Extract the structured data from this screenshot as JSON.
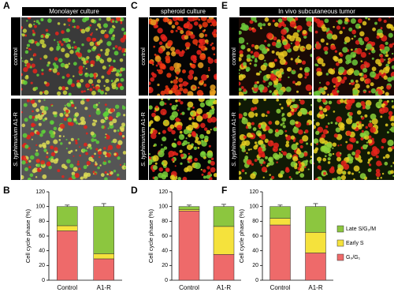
{
  "panels": [
    {
      "letter": "A",
      "title": "Monolayer culture",
      "rows": [
        {
          "label": "control"
        },
        {
          "species": "S. typhimurium",
          "strain": "A1-R"
        }
      ]
    },
    {
      "letter": "C",
      "title": "spheroid culture",
      "rows": [
        {
          "label": "control"
        },
        {
          "species": "S. typhimurium",
          "strain": "A1-R"
        }
      ]
    },
    {
      "letter": "E",
      "title": "In vivo subcutaneous tumor",
      "rows": [
        {
          "label": "control"
        },
        {
          "species": "S. typhimurium",
          "strain": "A1-R"
        }
      ]
    }
  ],
  "chart_data": [
    {
      "letter": "B",
      "type": "bar",
      "stacked": true,
      "ylabel": "Cell cycle phase (%)",
      "categories": [
        "Control",
        "A1-R"
      ],
      "ylim": [
        0,
        120
      ],
      "yticks": [
        0,
        20,
        40,
        60,
        80,
        100,
        120
      ],
      "legend": false,
      "series": [
        {
          "color": "#ee6a6a",
          "values": [
            67,
            29
          ],
          "errors": [
            5,
            2
          ]
        },
        {
          "color": "#f5e23c",
          "values": [
            7,
            7
          ],
          "errors": [
            3,
            2
          ]
        },
        {
          "color": "#8cc63f",
          "values": [
            26,
            64
          ],
          "errors": [
            2,
            4
          ]
        }
      ]
    },
    {
      "letter": "D",
      "type": "bar",
      "stacked": true,
      "ylabel": "Cell cycle phase (%)",
      "categories": [
        "Control",
        "A1-R"
      ],
      "ylim": [
        0,
        120
      ],
      "yticks": [
        0,
        20,
        40,
        60,
        80,
        100,
        120
      ],
      "legend": false,
      "series": [
        {
          "color": "#ee6a6a",
          "values": [
            94,
            35
          ],
          "errors": [
            1,
            3
          ]
        },
        {
          "color": "#f5e23c",
          "values": [
            2,
            38
          ],
          "errors": [
            1,
            1
          ]
        },
        {
          "color": "#8cc63f",
          "values": [
            4,
            27
          ],
          "errors": [
            2,
            3
          ]
        }
      ]
    },
    {
      "letter": "F",
      "type": "bar",
      "stacked": true,
      "ylabel": "Cell cycle phase (%)",
      "categories": [
        "Control",
        "A1-R"
      ],
      "ylim": [
        0,
        120
      ],
      "yticks": [
        0,
        20,
        40,
        60,
        80,
        100,
        120
      ],
      "legend": true,
      "series": [
        {
          "name": "G₀/G₁",
          "color": "#ee6a6a",
          "values": [
            75,
            37
          ],
          "errors": [
            3,
            3
          ]
        },
        {
          "name": "Early S",
          "color": "#f5e23c",
          "values": [
            9,
            28
          ],
          "errors": [
            2,
            6
          ]
        },
        {
          "name": "Late S/G₂/M",
          "color": "#8cc63f",
          "values": [
            16,
            35
          ],
          "errors": [
            2,
            4
          ]
        }
      ]
    }
  ]
}
